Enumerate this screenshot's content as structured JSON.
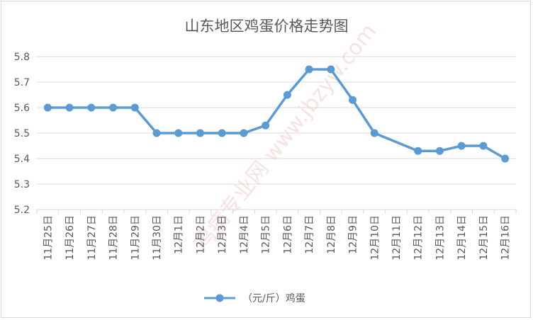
{
  "chart_data": {
    "type": "line",
    "title": "山东地区鸡蛋价格走势图",
    "categories": [
      "11月25日",
      "11月26日",
      "11月27日",
      "11月28日",
      "11月29日",
      "11月30日",
      "12月1日",
      "12月2日",
      "12月3日",
      "12月4日",
      "12月5日",
      "12月6日",
      "12月7日",
      "12月8日",
      "12月9日",
      "12月10日",
      "12月11日",
      "12月12日",
      "12月13日",
      "12月14日",
      "12月15日",
      "12月16日"
    ],
    "series": [
      {
        "name": "（元/斤）鸡蛋",
        "values": [
          5.6,
          5.6,
          5.6,
          5.6,
          5.6,
          5.5,
          5.5,
          5.5,
          5.5,
          5.5,
          5.53,
          5.65,
          5.75,
          5.75,
          5.63,
          5.5,
          null,
          5.43,
          5.43,
          5.45,
          5.45,
          5.4
        ]
      }
    ],
    "ylim": [
      5.2,
      5.8
    ],
    "yticks": [
      "5.2",
      "5.3",
      "5.4",
      "5.5",
      "5.6",
      "5.7",
      "5.8"
    ],
    "grid": true,
    "legend_position": "bottom",
    "colors": {
      "line": "#5b9bd5",
      "grid": "#d9d9d9",
      "text": "#595959"
    },
    "watermark": "鸡病专业网 www.jbzyw.com"
  }
}
